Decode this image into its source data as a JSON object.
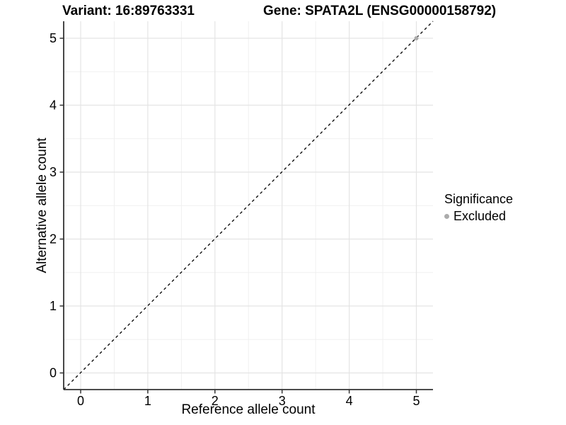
{
  "titles": {
    "variant": "Variant: 16:89763331",
    "gene": "Gene: SPATA2L (ENSG00000158792)"
  },
  "chart_data": {
    "type": "scatter",
    "xlabel": "Reference allele count",
    "ylabel": "Alternative allele count",
    "x_ticks": [
      "0",
      "1",
      "2",
      "3",
      "4",
      "5"
    ],
    "y_ticks": [
      "0",
      "1",
      "2",
      "3",
      "4",
      "5"
    ],
    "x_minor_ticks": [
      0.5,
      1.5,
      2.5,
      3.5,
      4.5
    ],
    "y_minor_ticks": [
      0.5,
      1.5,
      2.5,
      3.5,
      4.5
    ],
    "xlim": [
      -0.25,
      5.25
    ],
    "ylim": [
      -0.25,
      5.25
    ],
    "grid": true,
    "reference_line": {
      "type": "abline",
      "slope": 1,
      "intercept": 0,
      "style": "dashed",
      "color": "#000000"
    },
    "series": [
      {
        "name": "Excluded",
        "color": "#ABABAB",
        "points": [
          {
            "x": 5,
            "y": 5
          }
        ]
      }
    ],
    "legend_position": "right"
  },
  "legend": {
    "title": "Significance",
    "items": [
      {
        "label": "Excluded",
        "color": "#ABABAB"
      }
    ]
  },
  "theme": {
    "background": "#ffffff",
    "grid_major": "#E4E4E4",
    "grid_minor": "#F0F0F0",
    "axis_line": "#333333",
    "tick_mark": "#333333",
    "text": "#000000",
    "point": "#ABABAB"
  }
}
